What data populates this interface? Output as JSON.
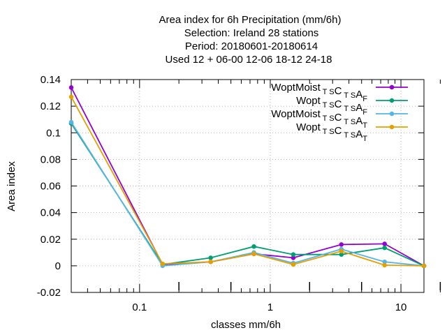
{
  "chart_data": {
    "type": "line",
    "title_lines": [
      "Area index  for 6h Precipitation (mm/6h)",
      "Selection: Ireland     28 stations",
      "Period: 20180601-20180614",
      "Used  12 + 06-00 12-06 18-12 24-18"
    ],
    "xlabel": "classes mm/6h",
    "ylabel": "Area index",
    "x_scale": "log",
    "xlim": [
      0.03,
      15
    ],
    "ylim": [
      -0.02,
      0.14
    ],
    "x_tick_labels": [
      {
        "value": 0.1,
        "label": "0.1"
      },
      {
        "value": 1,
        "label": "1"
      },
      {
        "value": 10,
        "label": "10"
      }
    ],
    "y_tick_labels": [
      {
        "value": 0.14,
        "label": "0.14"
      },
      {
        "value": 0.12,
        "label": "0.12"
      },
      {
        "value": 0.1,
        "label": "0.1"
      },
      {
        "value": 0.08,
        "label": "0.08"
      },
      {
        "value": 0.06,
        "label": "0.06"
      },
      {
        "value": 0.04,
        "label": "0.04"
      },
      {
        "value": 0.02,
        "label": "0.02"
      },
      {
        "value": 0,
        "label": "0"
      },
      {
        "value": -0.02,
        "label": "-0.02"
      }
    ],
    "grid": true,
    "legend_position": "top-right",
    "x": [
      0.03,
      0.15,
      0.35,
      0.75,
      1.5,
      3.5,
      7.5,
      15
    ],
    "series": [
      {
        "name_main": "WoptMoist",
        "name_parts": [
          [
            "T",
            "S"
          ],
          [
            "C",
            ""
          ],
          [
            "T",
            "S"
          ],
          [
            "A",
            ""
          ],
          [
            "F",
            ""
          ]
        ],
        "color": "#9400d3",
        "values": [
          0.134,
          0.001,
          0.003,
          0.009,
          0.006,
          0.016,
          0.0165,
          0.0
        ]
      },
      {
        "name_main": "Wopt",
        "name_parts": [
          [
            "T",
            "S"
          ],
          [
            "C",
            ""
          ],
          [
            "T",
            "S"
          ],
          [
            "A",
            ""
          ],
          [
            "F",
            ""
          ]
        ],
        "color": "#009e73",
        "values": [
          0.107,
          0.001,
          0.006,
          0.0145,
          0.0085,
          0.0085,
          0.0135,
          0.0
        ]
      },
      {
        "name_main": "WoptMoist",
        "name_parts": [
          [
            "T",
            "S"
          ],
          [
            "C",
            ""
          ],
          [
            "T",
            "S"
          ],
          [
            "A",
            ""
          ],
          [
            "T",
            ""
          ]
        ],
        "color": "#56b4e9",
        "values": [
          0.108,
          0.0,
          0.003,
          0.01,
          0.002,
          0.0125,
          0.003,
          0.0
        ]
      },
      {
        "name_main": "Wopt",
        "name_parts": [
          [
            "T",
            "S"
          ],
          [
            "C",
            ""
          ],
          [
            "T",
            "S"
          ],
          [
            "A",
            ""
          ],
          [
            "T",
            ""
          ]
        ],
        "color": "#e69f00",
        "values": [
          0.127,
          0.0015,
          0.003,
          0.009,
          0.001,
          0.011,
          0.0005,
          0.0
        ]
      }
    ]
  }
}
